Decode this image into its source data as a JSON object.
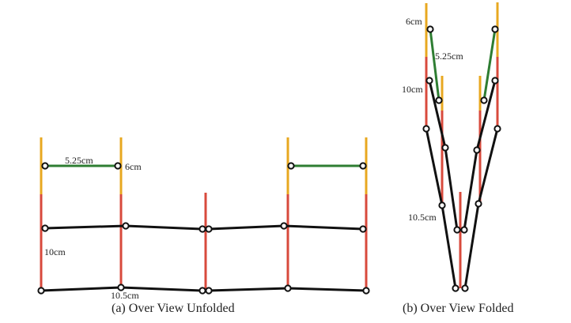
{
  "colors": {
    "tip": "#E8A820",
    "pole": "#D84A3C",
    "green_link": "#2E7D32",
    "black_link": "#111111",
    "joint_fill": "#ffffff",
    "joint_stroke": "#111111"
  },
  "unfolded": {
    "caption": "(a)  Over View Unfolded",
    "labels": {
      "green_length": "5.25cm",
      "top_segment": "6cm",
      "pole_segment": "10cm",
      "bottom_link": "10.5cm"
    }
  },
  "folded": {
    "caption": "(b) Over View Folded",
    "labels": {
      "top_segment": "6cm",
      "green_length": "5.25cm",
      "pole_segment": "10cm",
      "bottom_link": "10.5cm"
    }
  }
}
